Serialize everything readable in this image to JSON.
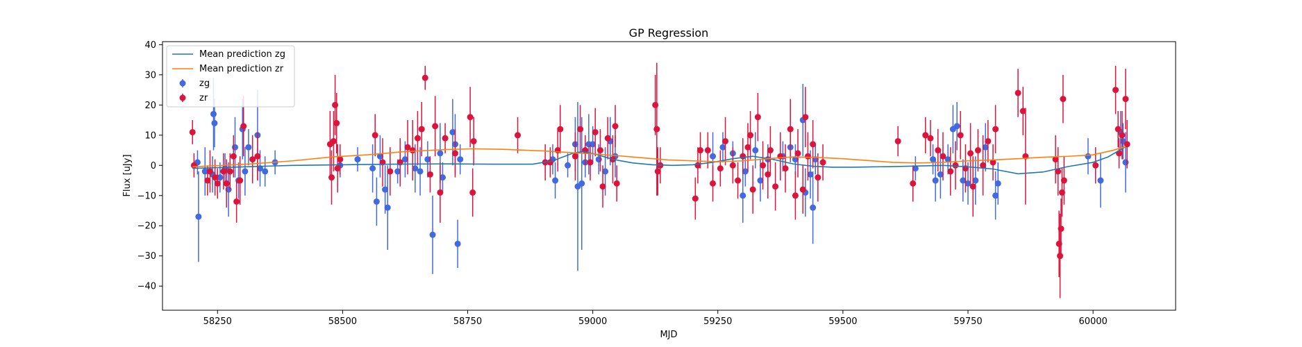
{
  "chart_data": {
    "type": "scatter",
    "title": "GP Regression",
    "xlabel": "MJD",
    "ylabel": "Flux [uJy]",
    "xlim": [
      58140,
      60165
    ],
    "ylim": [
      -48,
      41
    ],
    "xticks": [
      58250,
      58500,
      58750,
      59000,
      59250,
      59500,
      59750,
      60000
    ],
    "yticks": [
      -40,
      -30,
      -20,
      -10,
      0,
      10,
      20,
      30,
      40
    ],
    "grid": false,
    "legend_position": "top-left",
    "legend": [
      "Mean prediction zg",
      "Mean prediction zr",
      "zg",
      "zr"
    ],
    "series": [
      {
        "name": "Mean prediction zg",
        "kind": "line",
        "color": "#1f77b4",
        "x": [
          58200,
          58260,
          58320,
          58400,
          58500,
          58600,
          58700,
          58800,
          58880,
          58920,
          58960,
          58980,
          59010,
          59040,
          59080,
          59120,
          59160,
          59200,
          59240,
          59280,
          59320,
          59360,
          59400,
          59440,
          59480,
          59520,
          59560,
          59600,
          59650,
          59700,
          59750,
          59800,
          59850,
          59900,
          59950,
          60000,
          60030,
          60065
        ],
        "y": [
          -1,
          -0.7,
          -0.4,
          0,
          0.2,
          0.4,
          0.5,
          0.4,
          0.4,
          1.5,
          4,
          4.6,
          3.5,
          2,
          0.8,
          0.2,
          0,
          0.2,
          1,
          2.2,
          3,
          2,
          0.5,
          -0.3,
          -0.6,
          -0.6,
          -0.5,
          -0.4,
          -0.2,
          0,
          -0.5,
          -1.2,
          -2.8,
          -2.2,
          -0.4,
          1,
          2.8,
          6.2
        ]
      },
      {
        "name": "Mean prediction zr",
        "kind": "line",
        "color": "#ff7f0e",
        "x": [
          58200,
          58260,
          58320,
          58400,
          58480,
          58550,
          58620,
          58700,
          58760,
          58820,
          58900,
          58960,
          59000,
          59050,
          59100,
          59150,
          59200,
          59250,
          59300,
          59350,
          59400,
          59450,
          59500,
          59550,
          59600,
          59650,
          59700,
          59750,
          59800,
          59850,
          59900,
          59950,
          60000,
          60040,
          60065
        ],
        "y": [
          -0.5,
          0,
          0.5,
          1.5,
          2.8,
          3.5,
          4.5,
          5.2,
          5.5,
          5.3,
          4.8,
          4.2,
          3.8,
          3.2,
          2.5,
          1.8,
          1.5,
          1.2,
          1.5,
          2.2,
          2.8,
          2.6,
          2.2,
          1.6,
          1.0,
          0.8,
          1.0,
          1.5,
          1.8,
          2.2,
          2.7,
          3.0,
          3.5,
          5.0,
          6.2
        ]
      },
      {
        "name": "zg",
        "kind": "errorbar",
        "color": "#4169e1",
        "points": [
          [
            58210,
            1,
            4
          ],
          [
            58212,
            -17,
            15
          ],
          [
            58225,
            -2,
            8
          ],
          [
            58240,
            -3,
            6
          ],
          [
            58242,
            17,
            12
          ],
          [
            58244,
            14,
            8
          ],
          [
            58255,
            -4,
            5
          ],
          [
            58265,
            -1,
            5
          ],
          [
            58272,
            -8,
            9
          ],
          [
            58285,
            6,
            10
          ],
          [
            58292,
            -5,
            6
          ],
          [
            58300,
            12,
            10
          ],
          [
            58305,
            -2,
            8
          ],
          [
            58312,
            6,
            6
          ],
          [
            58330,
            10,
            15
          ],
          [
            58335,
            -1,
            6
          ],
          [
            58345,
            -2,
            5
          ],
          [
            58365,
            1,
            4
          ],
          [
            58495,
            0,
            4
          ],
          [
            58530,
            2,
            4
          ],
          [
            58560,
            -1,
            8
          ],
          [
            58568,
            -12,
            8
          ],
          [
            58575,
            3,
            7
          ],
          [
            58585,
            -8,
            8
          ],
          [
            58590,
            -14,
            14
          ],
          [
            58610,
            -2,
            4
          ],
          [
            58625,
            2,
            6
          ],
          [
            58645,
            -1,
            8
          ],
          [
            58655,
            -2,
            8
          ],
          [
            58670,
            2,
            6
          ],
          [
            58680,
            -23,
            13
          ],
          [
            58695,
            4,
            10
          ],
          [
            58700,
            -4,
            5
          ],
          [
            58720,
            11,
            11
          ],
          [
            58725,
            7,
            10
          ],
          [
            58730,
            -26,
            8
          ],
          [
            58735,
            2,
            5
          ],
          [
            58920,
            2,
            5
          ],
          [
            58925,
            -5,
            6
          ],
          [
            58950,
            0,
            4
          ],
          [
            58965,
            7,
            9
          ],
          [
            58970,
            -7,
            28
          ],
          [
            58978,
            -6,
            22
          ],
          [
            58985,
            1,
            5
          ],
          [
            58992,
            7,
            10
          ],
          [
            59000,
            7,
            6
          ],
          [
            59012,
            2,
            5
          ],
          [
            59025,
            -2,
            8
          ],
          [
            59035,
            8,
            8
          ],
          [
            59045,
            3,
            7
          ],
          [
            59240,
            3,
            8
          ],
          [
            59260,
            6,
            5
          ],
          [
            59280,
            4,
            4
          ],
          [
            59300,
            -10,
            9
          ],
          [
            59305,
            -2,
            5
          ],
          [
            59325,
            5,
            6
          ],
          [
            59335,
            -5,
            7
          ],
          [
            59350,
            2,
            5
          ],
          [
            59380,
            3,
            5
          ],
          [
            59395,
            6,
            5
          ],
          [
            59405,
            2,
            5
          ],
          [
            59420,
            15,
            12
          ],
          [
            59425,
            -9,
            8
          ],
          [
            59435,
            -3,
            8
          ],
          [
            59440,
            -14,
            12
          ],
          [
            59445,
            2,
            5
          ],
          [
            59645,
            -1,
            4
          ],
          [
            59680,
            2,
            5
          ],
          [
            59685,
            -5,
            7
          ],
          [
            59695,
            -3,
            8
          ],
          [
            59710,
            2,
            5
          ],
          [
            59720,
            12,
            8
          ],
          [
            59728,
            13,
            8
          ],
          [
            59740,
            -5,
            7
          ],
          [
            59750,
            -6,
            7
          ],
          [
            59765,
            -5,
            8
          ],
          [
            59785,
            6,
            8
          ],
          [
            59805,
            -10,
            8
          ],
          [
            59810,
            -6,
            7
          ],
          [
            59990,
            3,
            6
          ],
          [
            60015,
            -5,
            9
          ],
          [
            60055,
            11,
            7
          ],
          [
            60060,
            8,
            6
          ],
          [
            60065,
            1,
            10
          ]
        ]
      },
      {
        "name": "zr",
        "kind": "errorbar",
        "color": "#dc143c",
        "points": [
          [
            58200,
            11,
            4
          ],
          [
            58203,
            0,
            4
          ],
          [
            58230,
            -5,
            5
          ],
          [
            58235,
            -2,
            7
          ],
          [
            58245,
            -4,
            6
          ],
          [
            58250,
            -6,
            5
          ],
          [
            58262,
            -2,
            6
          ],
          [
            58268,
            -6,
            8
          ],
          [
            58275,
            -2,
            6
          ],
          [
            58282,
            3,
            7
          ],
          [
            58288,
            -12,
            7
          ],
          [
            58295,
            -5,
            8
          ],
          [
            58302,
            13,
            10
          ],
          [
            58320,
            2,
            8
          ],
          [
            58330,
            3,
            8
          ],
          [
            58475,
            7,
            11
          ],
          [
            58478,
            -4,
            9
          ],
          [
            58482,
            8,
            10
          ],
          [
            58485,
            20,
            10
          ],
          [
            58488,
            14,
            10
          ],
          [
            58490,
            -1,
            8
          ],
          [
            58495,
            2,
            5
          ],
          [
            58565,
            10,
            7
          ],
          [
            58580,
            1,
            8
          ],
          [
            58595,
            -2,
            8
          ],
          [
            58615,
            1,
            8
          ],
          [
            58630,
            6,
            9
          ],
          [
            58640,
            5,
            10
          ],
          [
            58650,
            9,
            9
          ],
          [
            58658,
            12,
            9
          ],
          [
            58665,
            29,
            4
          ],
          [
            58675,
            -3,
            6
          ],
          [
            58685,
            13,
            10
          ],
          [
            58695,
            -9,
            10
          ],
          [
            58705,
            9,
            5
          ],
          [
            58725,
            4,
            8
          ],
          [
            58755,
            16,
            10
          ],
          [
            58760,
            -9,
            8
          ],
          [
            58762,
            8,
            8
          ],
          [
            58850,
            10,
            6
          ],
          [
            58905,
            1,
            6
          ],
          [
            58915,
            1,
            5
          ],
          [
            58930,
            5,
            7
          ],
          [
            58935,
            12,
            8
          ],
          [
            58965,
            3,
            8
          ],
          [
            58975,
            12,
            8
          ],
          [
            58985,
            5,
            5
          ],
          [
            58995,
            1,
            6
          ],
          [
            59005,
            11,
            8
          ],
          [
            59015,
            5,
            7
          ],
          [
            59020,
            -7,
            7
          ],
          [
            59030,
            9,
            7
          ],
          [
            59040,
            2,
            8
          ],
          [
            59045,
            13,
            7
          ],
          [
            59048,
            -6,
            6
          ],
          [
            59125,
            20,
            10
          ],
          [
            59128,
            12,
            22
          ],
          [
            59130,
            -2,
            8
          ],
          [
            59135,
            0,
            6
          ],
          [
            59205,
            -11,
            7
          ],
          [
            59210,
            0,
            6
          ],
          [
            59215,
            5,
            6
          ],
          [
            59230,
            5,
            6
          ],
          [
            59240,
            -6,
            6
          ],
          [
            59255,
            -1,
            6
          ],
          [
            59265,
            8,
            8
          ],
          [
            59280,
            0,
            6
          ],
          [
            59290,
            -5,
            6
          ],
          [
            59300,
            3,
            6
          ],
          [
            59310,
            6,
            8
          ],
          [
            59315,
            10,
            8
          ],
          [
            59320,
            -8,
            8
          ],
          [
            59330,
            16,
            8
          ],
          [
            59340,
            0,
            8
          ],
          [
            59350,
            -3,
            8
          ],
          [
            59355,
            5,
            8
          ],
          [
            59365,
            -7,
            8
          ],
          [
            59375,
            3,
            8
          ],
          [
            59385,
            -1,
            8
          ],
          [
            59395,
            12,
            10
          ],
          [
            59405,
            -10,
            8
          ],
          [
            59410,
            4,
            8
          ],
          [
            59420,
            -8,
            8
          ],
          [
            59425,
            16,
            10
          ],
          [
            59430,
            3,
            8
          ],
          [
            59440,
            7,
            8
          ],
          [
            59450,
            -4,
            8
          ],
          [
            59460,
            1,
            6
          ],
          [
            59610,
            8,
            5
          ],
          [
            59640,
            -6,
            6
          ],
          [
            59665,
            10,
            6
          ],
          [
            59675,
            9,
            6
          ],
          [
            59690,
            5,
            7
          ],
          [
            59700,
            3,
            8
          ],
          [
            59715,
            -2,
            8
          ],
          [
            59725,
            0,
            8
          ],
          [
            59735,
            10,
            8
          ],
          [
            59745,
            -1,
            8
          ],
          [
            59755,
            4,
            10
          ],
          [
            59760,
            -7,
            10
          ],
          [
            59770,
            5,
            7
          ],
          [
            59780,
            0,
            10
          ],
          [
            59790,
            8,
            7
          ],
          [
            59800,
            1,
            6
          ],
          [
            59805,
            12,
            8
          ],
          [
            59850,
            24,
            8
          ],
          [
            59860,
            18,
            8
          ],
          [
            59865,
            3,
            16
          ],
          [
            59925,
            2,
            8
          ],
          [
            59930,
            -2,
            8
          ],
          [
            59932,
            -26,
            11
          ],
          [
            59934,
            -30,
            14
          ],
          [
            59936,
            -21,
            10
          ],
          [
            59938,
            -9,
            8
          ],
          [
            59940,
            22,
            8
          ],
          [
            59942,
            -5,
            8
          ],
          [
            60005,
            0,
            6
          ],
          [
            60045,
            25,
            8
          ],
          [
            60050,
            12,
            6
          ],
          [
            60052,
            4,
            5
          ],
          [
            60058,
            10,
            8
          ],
          [
            60065,
            22,
            10
          ],
          [
            60068,
            7,
            8
          ]
        ]
      }
    ]
  }
}
